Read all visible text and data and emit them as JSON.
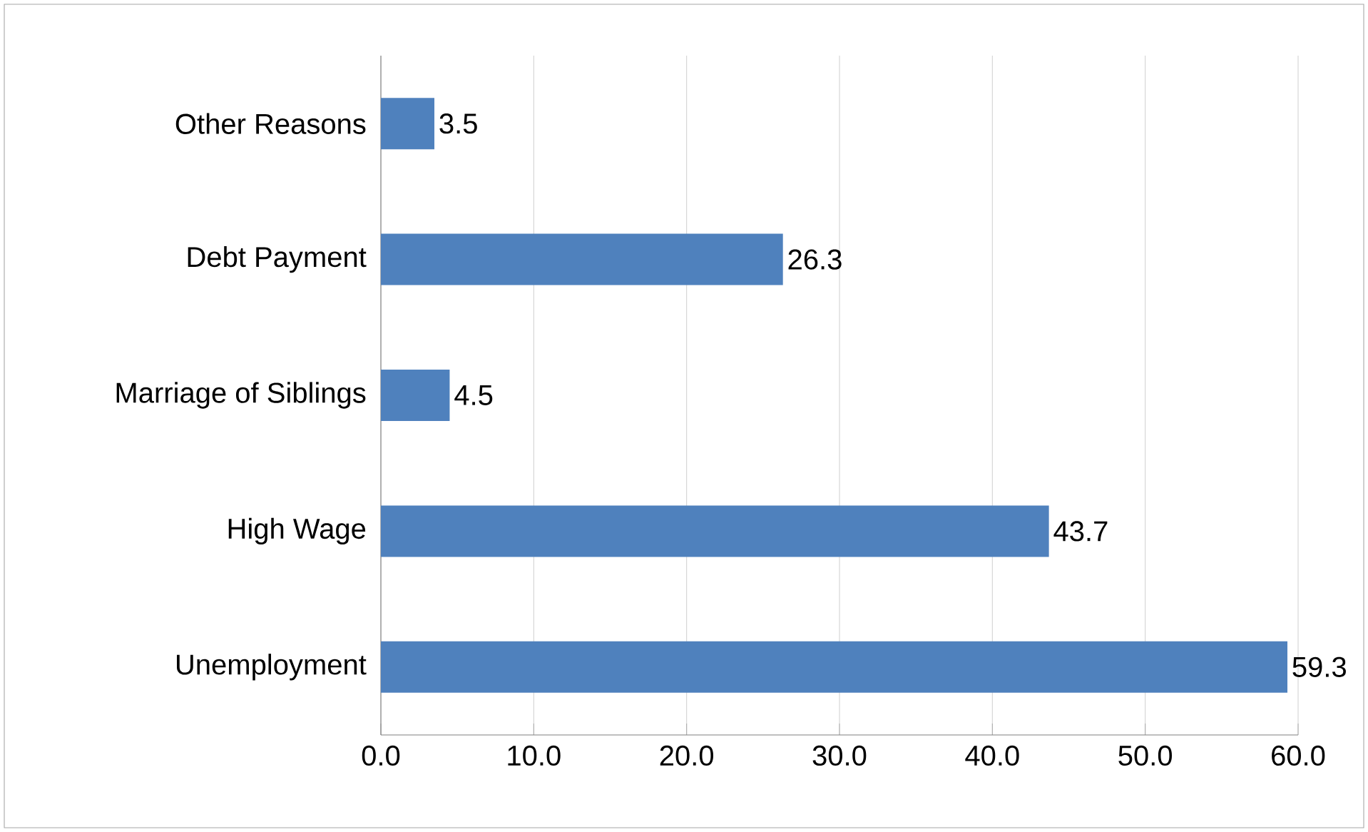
{
  "chart_data": {
    "type": "bar",
    "orientation": "horizontal",
    "categories": [
      "Other Reasons",
      "Debt Payment",
      "Marriage of Siblings",
      "High Wage",
      "Unemployment"
    ],
    "values": [
      3.5,
      26.3,
      4.5,
      43.7,
      59.3
    ],
    "color": "#4f81bd",
    "xlim": [
      0,
      60
    ],
    "xticks": [
      {
        "value": 0,
        "label": "0.0"
      },
      {
        "value": 10,
        "label": "10.0"
      },
      {
        "value": 20,
        "label": "20.0"
      },
      {
        "value": 30,
        "label": "30.0"
      },
      {
        "value": 40,
        "label": "40.0"
      },
      {
        "value": 50,
        "label": "50.0"
      },
      {
        "value": 60,
        "label": "60.0"
      }
    ],
    "grid": "x",
    "data_labels": true
  }
}
